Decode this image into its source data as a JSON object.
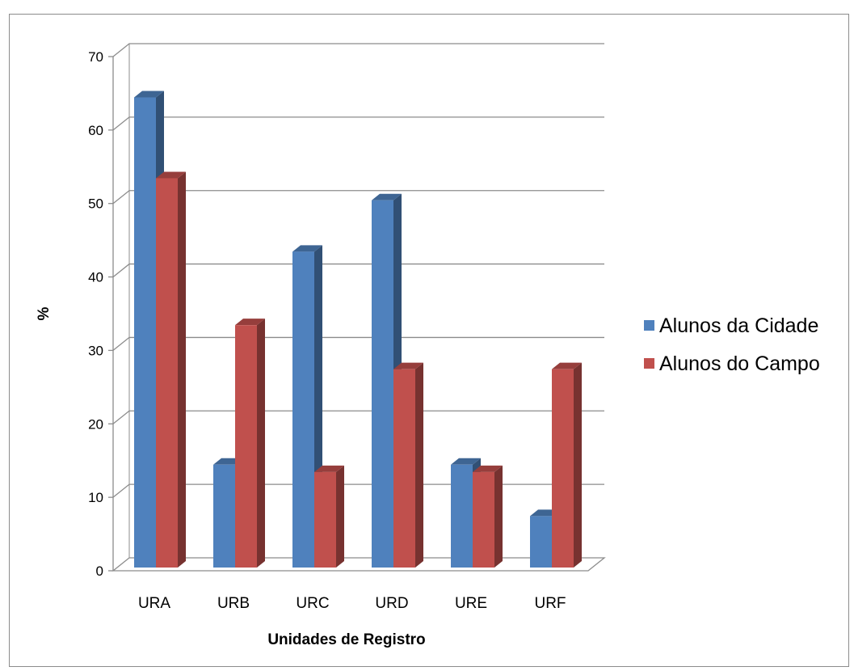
{
  "chart_data": {
    "type": "bar",
    "title": "",
    "xlabel": "Unidades de Registro",
    "ylabel": "%",
    "ylim": [
      0,
      70
    ],
    "yticks": [
      0,
      10,
      20,
      30,
      40,
      50,
      60,
      70
    ],
    "grid": true,
    "legend_position": "right",
    "categories": [
      "URA",
      "URB",
      "URC",
      "URD",
      "URE",
      "URF"
    ],
    "series": [
      {
        "name": "Alunos da Cidade",
        "color": "#4f81bd",
        "values": [
          64,
          14,
          43,
          50,
          14,
          7
        ]
      },
      {
        "name": "Alunos do Campo",
        "color": "#c0504d",
        "values": [
          53,
          33,
          13,
          27,
          13,
          27
        ]
      }
    ]
  }
}
